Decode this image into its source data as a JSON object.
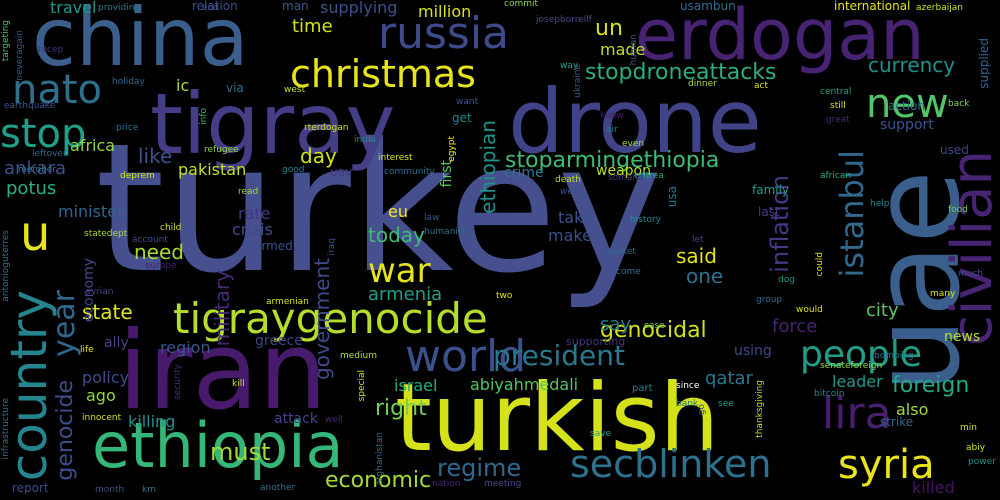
{
  "words": [
    {
      "text": "turkey",
      "color": "#46508e"
    },
    {
      "text": "uae",
      "color": "#3b5f8c"
    },
    {
      "text": "iran",
      "color": "#481a6c"
    },
    {
      "text": "turkish",
      "color": "#d5e21a"
    },
    {
      "text": "tigray",
      "color": "#433e85"
    },
    {
      "text": "drone",
      "color": "#404387"
    },
    {
      "text": "china",
      "color": "#3b5f8c"
    },
    {
      "text": "erdogan",
      "color": "#482374"
    },
    {
      "text": "ethiopia",
      "color": "#35b779"
    },
    {
      "text": "tigraygenocide",
      "color": "#b5de2b"
    },
    {
      "text": "russia",
      "color": "#3e4a89"
    },
    {
      "text": "christmas",
      "color": "#e7e419"
    },
    {
      "text": "civilian",
      "color": "#482475"
    },
    {
      "text": "secblinken",
      "color": "#2d718e"
    },
    {
      "text": "syria",
      "color": "#eae51a"
    },
    {
      "text": "country",
      "color": "#25858e"
    },
    {
      "text": "world",
      "color": "#3b518b"
    },
    {
      "text": "people",
      "color": "#1f9f88"
    },
    {
      "text": "istanbul",
      "color": "#31688e"
    },
    {
      "text": "lira",
      "color": "#481f70"
    },
    {
      "text": "war",
      "color": "#e5e419"
    },
    {
      "text": "new",
      "color": "#52c569"
    },
    {
      "text": "nato",
      "color": "#2e6f8e"
    },
    {
      "text": "stop",
      "color": "#1fa088"
    },
    {
      "text": "u",
      "color": "#e7e419"
    },
    {
      "text": "year",
      "color": "#31688e"
    },
    {
      "text": "genocide",
      "color": "#3e4c8a"
    },
    {
      "text": "president",
      "color": "#2a788e"
    },
    {
      "text": "must",
      "color": "#a2da37"
    },
    {
      "text": "regime",
      "color": "#31688e"
    },
    {
      "text": "economic",
      "color": "#a5db36"
    },
    {
      "text": "stopdroneattacks",
      "color": "#29af7f"
    },
    {
      "text": "stoparmingethiopia",
      "color": "#3dbc74"
    },
    {
      "text": "genocidal",
      "color": "#d2e21b"
    },
    {
      "text": "said",
      "color": "#e5e419"
    },
    {
      "text": "inflation",
      "color": "#443983"
    },
    {
      "text": "currency",
      "color": "#218f8d"
    },
    {
      "text": "foreign",
      "color": "#22a884"
    },
    {
      "text": "armenia",
      "color": "#1f9e89"
    },
    {
      "text": "right",
      "color": "#73d056"
    },
    {
      "text": "today",
      "color": "#3bbb75"
    },
    {
      "text": "government",
      "color": "#3e4a89"
    },
    {
      "text": "military",
      "color": "#482878"
    },
    {
      "text": "un",
      "color": "#d8e219"
    },
    {
      "text": "made",
      "color": "#bddf26"
    },
    {
      "text": "ethiopian",
      "color": "#21918c"
    },
    {
      "text": "need",
      "color": "#a8db34"
    },
    {
      "text": "state",
      "color": "#e1e418"
    },
    {
      "text": "ankara",
      "color": "#3b518b"
    },
    {
      "text": "potus",
      "color": "#28ae80"
    },
    {
      "text": "minister",
      "color": "#32658e"
    },
    {
      "text": "day",
      "color": "#d2e21b"
    },
    {
      "text": "like",
      "color": "#3a548c"
    },
    {
      "text": "africa",
      "color": "#8fd744"
    },
    {
      "text": "pakistan",
      "color": "#c2df23"
    },
    {
      "text": "rate",
      "color": "#453781"
    },
    {
      "text": "crisis",
      "color": "#3e4c8a"
    },
    {
      "text": "economy",
      "color": "#3e4989"
    },
    {
      "text": "eu",
      "color": "#fde725"
    },
    {
      "text": "take",
      "color": "#3b528b"
    },
    {
      "text": "make",
      "color": "#3c4f8a"
    },
    {
      "text": "one",
      "color": "#2c728e"
    },
    {
      "text": "city",
      "color": "#5ec962"
    },
    {
      "text": "force",
      "color": "#482173"
    },
    {
      "text": "say",
      "color": "#287d8e"
    },
    {
      "text": "israel",
      "color": "#25ac82"
    },
    {
      "text": "abiyahmedali",
      "color": "#52c569"
    },
    {
      "text": "qatar",
      "color": "#2a768e"
    },
    {
      "text": "leader",
      "color": "#1f988b"
    },
    {
      "text": "also",
      "color": "#a0da39"
    },
    {
      "text": "killed",
      "color": "#471164"
    },
    {
      "text": "killing",
      "color": "#21908d"
    },
    {
      "text": "ago",
      "color": "#90d743"
    },
    {
      "text": "policy",
      "color": "#3e4c8a"
    },
    {
      "text": "region",
      "color": "#39568c"
    },
    {
      "text": "ally",
      "color": "#404688"
    },
    {
      "text": "greece",
      "color": "#414487"
    },
    {
      "text": "using",
      "color": "#3e4a89"
    },
    {
      "text": "supporting",
      "color": "#453581"
    },
    {
      "text": "news",
      "color": "#b2dd2d"
    },
    {
      "text": "support",
      "color": "#3a548c"
    },
    {
      "text": "used",
      "color": "#3e4989"
    },
    {
      "text": "time",
      "color": "#d2e21b"
    },
    {
      "text": "supplying",
      "color": "#3b528b"
    },
    {
      "text": "million",
      "color": "#d8e219"
    },
    {
      "text": "international",
      "color": "#e5e419"
    },
    {
      "text": "supplied",
      "color": "#32658e"
    },
    {
      "text": "weapon",
      "color": "#b5de2b"
    },
    {
      "text": "crime",
      "color": "#2a788e"
    },
    {
      "text": "family",
      "color": "#1f9e89"
    },
    {
      "text": "uav",
      "color": "#453882"
    },
    {
      "text": "last",
      "color": "#433e85"
    },
    {
      "text": "usa",
      "color": "#2b748e"
    },
    {
      "text": "travel",
      "color": "#1f968b"
    },
    {
      "text": "ic",
      "color": "#a8db34"
    },
    {
      "text": "via",
      "color": "#2e6e8e"
    },
    {
      "text": "attack",
      "color": "#3f4788"
    },
    {
      "text": "strike",
      "color": "#32658e"
    },
    {
      "text": "report",
      "color": "#3e4989"
    },
    {
      "text": "armed",
      "color": "#3b518b"
    },
    {
      "text": "first",
      "color": "#5cc863"
    },
    {
      "text": "get",
      "color": "#24878e"
    },
    {
      "text": "action",
      "color": "#2f6b8e"
    },
    {
      "text": "relation",
      "color": "#3b518b"
    },
    {
      "text": "man",
      "color": "#38588c"
    },
    {
      "text": "usambun",
      "color": "#2e6f8e"
    },
    {
      "text": "bombing",
      "color": "#2c718e"
    },
    {
      "text": "part",
      "color": "#23888e"
    },
    {
      "text": "since",
      "color": "#ffffff"
    },
    {
      "text": "dog",
      "color": "#1f988b"
    },
    {
      "text": "food",
      "color": "#74d055"
    },
    {
      "text": "many",
      "color": "#dde318"
    },
    {
      "text": "much",
      "color": "#3f4889"
    },
    {
      "text": "central",
      "color": "#1fa187"
    },
    {
      "text": "still",
      "color": "#d8e219"
    },
    {
      "text": "back",
      "color": "#7ad151"
    },
    {
      "text": "great",
      "color": "#482979"
    },
    {
      "text": "help",
      "color": "#26828e"
    },
    {
      "text": "history",
      "color": "#23888e"
    },
    {
      "text": "death",
      "color": "#bade28"
    },
    {
      "text": "eritrea",
      "color": "#22a785"
    },
    {
      "text": "african",
      "color": "#25ab82"
    },
    {
      "text": "somalia",
      "color": "#46327e"
    },
    {
      "text": "week",
      "color": "#3b528b"
    },
    {
      "text": "market",
      "color": "#32648e"
    },
    {
      "text": "come",
      "color": "#2e6f8e"
    },
    {
      "text": "let",
      "color": "#3f4788"
    },
    {
      "text": "case",
      "color": "#7ad151"
    },
    {
      "text": "save",
      "color": "#1fa088"
    },
    {
      "text": "two",
      "color": "#dde318"
    },
    {
      "text": "meeting",
      "color": "#3b528b"
    },
    {
      "text": "nation",
      "color": "#482677"
    },
    {
      "text": "another",
      "color": "#2c728e"
    },
    {
      "text": "month",
      "color": "#3c4f8a"
    },
    {
      "text": "km",
      "color": "#2a788e"
    },
    {
      "text": "well",
      "color": "#482475"
    },
    {
      "text": "innocent",
      "color": "#d5e21a"
    },
    {
      "text": "medium",
      "color": "#b5de2b"
    },
    {
      "text": "kill",
      "color": "#c8e020"
    },
    {
      "text": "life",
      "color": "#dde318"
    },
    {
      "text": "syrian",
      "color": "#3f4788"
    },
    {
      "text": "europe",
      "color": "#482071"
    },
    {
      "text": "child",
      "color": "#d5e21a"
    },
    {
      "text": "account",
      "color": "#3d4d8a"
    },
    {
      "text": "deprem",
      "color": "#d2e21b"
    },
    {
      "text": "read",
      "color": "#9bd93c"
    },
    {
      "text": "good",
      "color": "#25838e"
    },
    {
      "text": "interest",
      "color": "#d5e21a"
    },
    {
      "text": "community",
      "color": "#2c738e"
    },
    {
      "text": "law",
      "color": "#3a538b"
    },
    {
      "text": "humanity",
      "color": "#2e6f8e"
    },
    {
      "text": "refugee",
      "color": "#8ed645"
    },
    {
      "text": "price",
      "color": "#2c718e"
    },
    {
      "text": "info",
      "color": "#38b977"
    },
    {
      "text": "member",
      "color": "#2c728e"
    },
    {
      "text": "leftover",
      "color": "#32658e"
    },
    {
      "text": "earthquake",
      "color": "#3a548c"
    },
    {
      "text": "holiday",
      "color": "#31688e"
    },
    {
      "text": "rterdogan",
      "color": "#d5e21a"
    },
    {
      "text": "india",
      "color": "#23898e"
    },
    {
      "text": "west",
      "color": "#cae11f"
    },
    {
      "text": "dinner",
      "color": "#a0da39"
    },
    {
      "text": "act",
      "color": "#d5e21a"
    },
    {
      "text": "want",
      "color": "#3b528b"
    },
    {
      "text": "know",
      "color": "#48186a"
    },
    {
      "text": "air",
      "color": "#25838e"
    },
    {
      "text": "even",
      "color": "#a0da39"
    },
    {
      "text": "providing",
      "color": "#2a788e"
    },
    {
      "text": "end",
      "color": "#3b518b"
    },
    {
      "text": "commit",
      "color": "#8ed645"
    },
    {
      "text": "josepborrellf",
      "color": "#3e4c8a"
    },
    {
      "text": "way",
      "color": "#20a386"
    },
    {
      "text": "human",
      "color": "#3b528b"
    },
    {
      "text": "ukraine",
      "color": "#38588c"
    },
    {
      "text": "azerbaijan",
      "color": "#cde11d"
    },
    {
      "text": "targeting",
      "color": "#4ac16d"
    },
    {
      "text": "neveragain",
      "color": "#3b528b"
    },
    {
      "text": "recep",
      "color": "#46307e"
    },
    {
      "text": "antonioguterres",
      "color": "#2c728e"
    },
    {
      "text": "infrastructure",
      "color": "#2e6e8e"
    },
    {
      "text": "afghanistan",
      "color": "#2e6e8e"
    },
    {
      "text": "special",
      "color": "#d5e21a"
    },
    {
      "text": "security",
      "color": "#482979"
    },
    {
      "text": "egypt",
      "color": "#fde725"
    },
    {
      "text": "armenian",
      "color": "#d8e219"
    },
    {
      "text": "iraq",
      "color": "#3b528b"
    },
    {
      "text": "bank",
      "color": "#2c728e"
    },
    {
      "text": "go",
      "color": "#3f4788"
    },
    {
      "text": "see",
      "color": "#1f9a8a"
    },
    {
      "text": "thanksgiving",
      "color": "#c0df25"
    },
    {
      "text": "group",
      "color": "#2e6e8e"
    },
    {
      "text": "would",
      "color": "#d8e219"
    },
    {
      "text": "could",
      "color": "#d8e219"
    },
    {
      "text": "bitcoin",
      "color": "#26828e"
    },
    {
      "text": "senateforeign",
      "color": "#8fd744"
    },
    {
      "text": "statedept",
      "color": "#a2da37"
    },
    {
      "text": "min",
      "color": "#d5e21a"
    },
    {
      "text": "abiy",
      "color": "#d8e219"
    },
    {
      "text": "power",
      "color": "#21918c"
    }
  ]
}
